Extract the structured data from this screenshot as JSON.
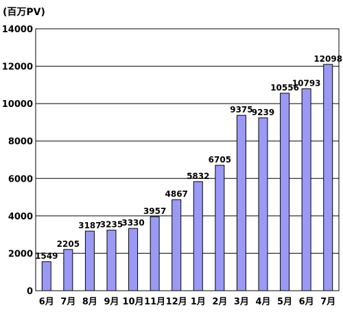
{
  "chart_data": {
    "type": "bar",
    "unit_label": "(百万PV)",
    "categories": [
      "6月",
      "7月",
      "8月",
      "9月",
      "10月",
      "11月",
      "12月",
      "1月",
      "2月",
      "3月",
      "4月",
      "5月",
      "6月",
      "7月"
    ],
    "values": [
      1549,
      2205,
      3187,
      3235,
      3330,
      3957,
      4867,
      5832,
      6705,
      9375,
      9239,
      10556,
      10793,
      12098
    ],
    "ylim": [
      0,
      14000
    ],
    "yticks": [
      0,
      2000,
      4000,
      6000,
      8000,
      10000,
      12000,
      14000
    ],
    "grid": true,
    "bar_color": "#9a9af5",
    "legend": "none"
  }
}
